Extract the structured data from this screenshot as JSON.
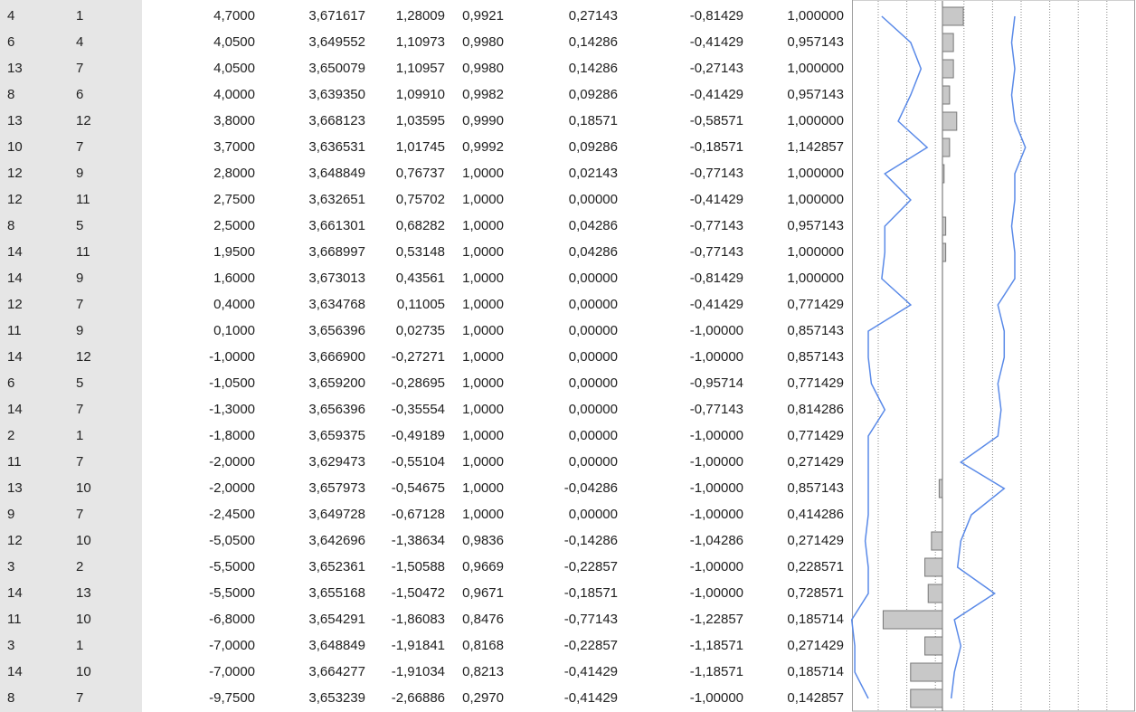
{
  "table": {
    "rows": [
      [
        "4",
        "1",
        "4,7000",
        "3,671617",
        "1,28009",
        "0,9921",
        "0,27143",
        "-0,81429",
        "1,000000"
      ],
      [
        "6",
        "4",
        "4,0500",
        "3,649552",
        "1,10973",
        "0,9980",
        "0,14286",
        "-0,41429",
        "0,957143"
      ],
      [
        "13",
        "7",
        "4,0500",
        "3,650079",
        "1,10957",
        "0,9980",
        "0,14286",
        "-0,27143",
        "1,000000"
      ],
      [
        "8",
        "6",
        "4,0000",
        "3,639350",
        "1,09910",
        "0,9982",
        "0,09286",
        "-0,41429",
        "0,957143"
      ],
      [
        "13",
        "12",
        "3,8000",
        "3,668123",
        "1,03595",
        "0,9990",
        "0,18571",
        "-0,58571",
        "1,000000"
      ],
      [
        "10",
        "7",
        "3,7000",
        "3,636531",
        "1,01745",
        "0,9992",
        "0,09286",
        "-0,18571",
        "1,142857"
      ],
      [
        "12",
        "9",
        "2,8000",
        "3,648849",
        "0,76737",
        "1,0000",
        "0,02143",
        "-0,77143",
        "1,000000"
      ],
      [
        "12",
        "11",
        "2,7500",
        "3,632651",
        "0,75702",
        "1,0000",
        "0,00000",
        "-0,41429",
        "1,000000"
      ],
      [
        "8",
        "5",
        "2,5000",
        "3,661301",
        "0,68282",
        "1,0000",
        "0,04286",
        "-0,77143",
        "0,957143"
      ],
      [
        "14",
        "11",
        "1,9500",
        "3,668997",
        "0,53148",
        "1,0000",
        "0,04286",
        "-0,77143",
        "1,000000"
      ],
      [
        "14",
        "9",
        "1,6000",
        "3,673013",
        "0,43561",
        "1,0000",
        "0,00000",
        "-0,81429",
        "1,000000"
      ],
      [
        "12",
        "7",
        "0,4000",
        "3,634768",
        "0,11005",
        "1,0000",
        "0,00000",
        "-0,41429",
        "0,771429"
      ],
      [
        "11",
        "9",
        "0,1000",
        "3,656396",
        "0,02735",
        "1,0000",
        "0,00000",
        "-1,00000",
        "0,857143"
      ],
      [
        "14",
        "12",
        "-1,0000",
        "3,666900",
        "-0,27271",
        "1,0000",
        "0,00000",
        "-1,00000",
        "0,857143"
      ],
      [
        "6",
        "5",
        "-1,0500",
        "3,659200",
        "-0,28695",
        "1,0000",
        "0,00000",
        "-0,95714",
        "0,771429"
      ],
      [
        "14",
        "7",
        "-1,3000",
        "3,656396",
        "-0,35554",
        "1,0000",
        "0,00000",
        "-0,77143",
        "0,814286"
      ],
      [
        "2",
        "1",
        "-1,8000",
        "3,659375",
        "-0,49189",
        "1,0000",
        "0,00000",
        "-1,00000",
        "0,771429"
      ],
      [
        "11",
        "7",
        "-2,0000",
        "3,629473",
        "-0,55104",
        "1,0000",
        "0,00000",
        "-1,00000",
        "0,271429"
      ],
      [
        "13",
        "10",
        "-2,0000",
        "3,657973",
        "-0,54675",
        "1,0000",
        "-0,04286",
        "-1,00000",
        "0,857143"
      ],
      [
        "9",
        "7",
        "-2,4500",
        "3,649728",
        "-0,67128",
        "1,0000",
        "0,00000",
        "-1,00000",
        "0,414286"
      ],
      [
        "12",
        "10",
        "-5,0500",
        "3,642696",
        "-1,38634",
        "0,9836",
        "-0,14286",
        "-1,04286",
        "0,271429"
      ],
      [
        "3",
        "2",
        "-5,5000",
        "3,652361",
        "-1,50588",
        "0,9669",
        "-0,22857",
        "-1,00000",
        "0,228571"
      ],
      [
        "14",
        "13",
        "-5,5000",
        "3,655168",
        "-1,50472",
        "0,9671",
        "-0,18571",
        "-1,00000",
        "0,728571"
      ],
      [
        "11",
        "10",
        "-6,8000",
        "3,654291",
        "-1,86083",
        "0,8476",
        "-0,77143",
        "-1,22857",
        "0,185714"
      ],
      [
        "3",
        "1",
        "-7,0000",
        "3,648849",
        "-1,91841",
        "0,8168",
        "-0,22857",
        "-1,18571",
        "0,271429"
      ],
      [
        "14",
        "10",
        "-7,0000",
        "3,664277",
        "-1,91034",
        "0,8213",
        "-0,41429",
        "-1,18571",
        "0,185714"
      ],
      [
        "8",
        "7",
        "-9,7500",
        "3,653239",
        "-2,66886",
        "0,2970",
        "-0,41429",
        "-1,00000",
        "0,142857"
      ]
    ]
  }
}
